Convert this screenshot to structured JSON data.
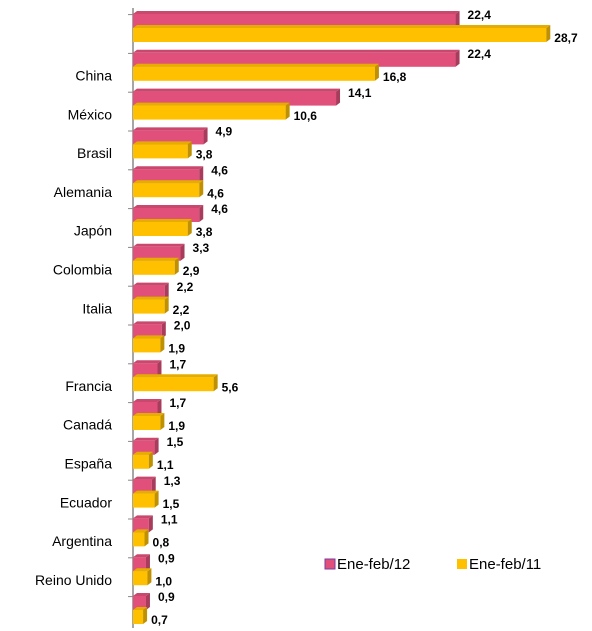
{
  "chart_data": {
    "type": "bar",
    "orientation": "horizontal",
    "categories": [
      null,
      "China",
      "México",
      "Brasil",
      "Alemania",
      "Japón",
      "Colombia",
      "Italia",
      null,
      "Francia",
      "Canadá",
      "España",
      "Ecuador",
      "Argentina",
      "Reino Unido",
      null
    ],
    "series": [
      {
        "name": "Ene-feb/12",
        "color": "#e0507a",
        "values": [
          22.4,
          22.4,
          14.1,
          4.9,
          4.6,
          4.6,
          3.3,
          2.2,
          2.0,
          1.7,
          1.7,
          1.5,
          1.3,
          1.1,
          0.9,
          0.9
        ],
        "value_labels": [
          "22,4",
          "22,4",
          "14,1",
          "4,9",
          "4,6",
          "4,6",
          "3,3",
          "2,2",
          "2,0",
          "1,7",
          "1,7",
          "1,5",
          "1,3",
          "1,1",
          "0,9",
          "0,9"
        ]
      },
      {
        "name": "Ene-feb/11",
        "color": "#ffc000",
        "values": [
          28.7,
          16.8,
          10.6,
          3.8,
          4.6,
          3.8,
          2.9,
          2.2,
          1.9,
          5.6,
          1.9,
          1.1,
          1.5,
          0.8,
          1.0,
          0.7
        ],
        "value_labels": [
          "28,7",
          "16,8",
          "10,6",
          "3,8",
          "4,6",
          "3,8",
          "2,9",
          "2,2",
          "1,9",
          "5,6",
          "1,9",
          "1,1",
          "1,5",
          "0,8",
          "1,0",
          "0,7"
        ]
      }
    ],
    "legend": "bottom-right"
  }
}
